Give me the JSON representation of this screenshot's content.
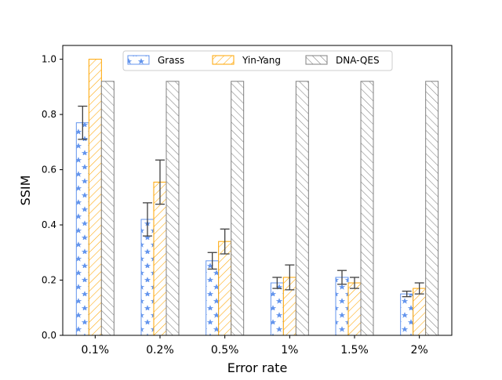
{
  "chart_data": {
    "type": "bar",
    "xlabel": "Error rate",
    "ylabel": "SSIM",
    "categories": [
      "0.1%",
      "0.2%",
      "0.5%",
      "1%",
      "1.5%",
      "2%"
    ],
    "ylim": [
      0.0,
      1.05
    ],
    "yticks": [
      "0.0",
      "0.2",
      "0.4",
      "0.6",
      "0.8",
      "1.0"
    ],
    "grid": false,
    "legend_position": "top-center",
    "series": [
      {
        "name": "Grass",
        "color": "#6495ED",
        "hatch": "stars",
        "values": [
          0.77,
          0.42,
          0.27,
          0.19,
          0.21,
          0.15
        ],
        "error": [
          0.06,
          0.06,
          0.03,
          0.02,
          0.025,
          0.01
        ]
      },
      {
        "name": "Yin-Yang",
        "color": "#FFA500",
        "hatch": "diagonal-forward",
        "values": [
          1.0,
          0.555,
          0.34,
          0.21,
          0.19,
          0.17
        ],
        "error": [
          0.0,
          0.08,
          0.045,
          0.045,
          0.02,
          0.02
        ]
      },
      {
        "name": "DNA-QES",
        "color": "#808080",
        "hatch": "diagonal-backward",
        "values": [
          0.92,
          0.92,
          0.92,
          0.92,
          0.92,
          0.92
        ],
        "error": [
          0,
          0,
          0,
          0,
          0,
          0
        ]
      }
    ]
  }
}
